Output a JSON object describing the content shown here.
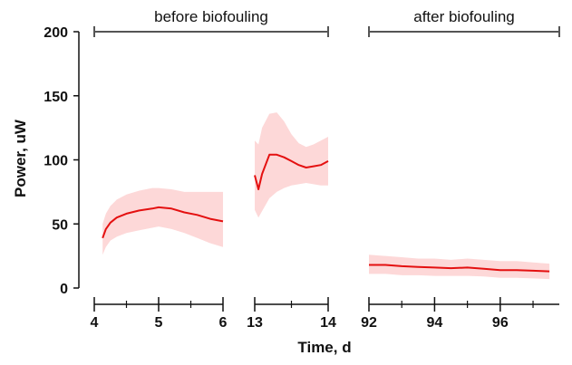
{
  "chart_data": {
    "type": "line",
    "xlabel": "Time, d",
    "ylabel": "Power, uW",
    "ylim": [
      0,
      200
    ],
    "y_ticks": [
      0,
      50,
      100,
      150,
      200
    ],
    "colors": {
      "line": "#e41010",
      "band": "#fdd8d8",
      "axis": "#111111",
      "bracket": "#555555"
    },
    "periods": [
      {
        "label": "before biofouling",
        "x_range": [
          4,
          14
        ],
        "panels": [
          0,
          1
        ]
      },
      {
        "label": "after biofouling",
        "x_range": [
          92,
          97.8
        ],
        "panels": [
          2
        ]
      }
    ],
    "panels": [
      {
        "xlim": [
          4,
          6
        ],
        "ticks": [
          4,
          5,
          6
        ],
        "minor_ticks": [
          4.5,
          5.5
        ],
        "series": [
          {
            "x": [
              4.13,
              4.18,
              4.25,
              4.35,
              4.5,
              4.7,
              4.9,
              5.0,
              5.2,
              5.4,
              5.6,
              5.8,
              6.0
            ],
            "mean": [
              39,
              46,
              51,
              55,
              58,
              60.5,
              62,
              63,
              62,
              59,
              57,
              54,
              52
            ],
            "upper": [
              50,
              58,
              64,
              69,
              73,
              76,
              78,
              78,
              77,
              75,
              75,
              75,
              75
            ],
            "lower": [
              26,
              32,
              37,
              40,
              43,
              45,
              47,
              48,
              46,
              43,
              39,
              35,
              32
            ]
          }
        ]
      },
      {
        "xlim": [
          13,
          14
        ],
        "ticks": [
          13,
          14
        ],
        "minor_ticks": [
          13.5
        ],
        "series": [
          {
            "x": [
              13.0,
              13.05,
              13.1,
              13.2,
              13.3,
              13.4,
              13.5,
              13.6,
              13.7,
              13.8,
              13.9,
              14.0
            ],
            "mean": [
              88,
              77,
              89,
              104,
              104,
              102,
              99,
              96,
              94,
              95,
              96,
              99
            ],
            "upper": [
              115,
              112,
              125,
              136,
              137,
              130,
              120,
              113,
              110,
              112,
              115,
              118
            ],
            "lower": [
              61,
              55,
              60,
              70,
              75,
              78,
              80,
              81,
              82,
              81,
              80,
              80
            ]
          }
        ]
      },
      {
        "xlim": [
          92,
          97.8
        ],
        "ticks": [
          92,
          94,
          96
        ],
        "minor_ticks": [
          93,
          95,
          97
        ],
        "series": [
          {
            "x": [
              92.0,
              92.5,
              93.0,
              93.5,
              94.0,
              94.5,
              95.0,
              95.5,
              96.0,
              96.5,
              97.0,
              97.5
            ],
            "mean": [
              18,
              18,
              17,
              16.5,
              16,
              15.5,
              16,
              15,
              14,
              14,
              13.5,
              13
            ],
            "upper": [
              26,
              25,
              24,
              23,
              23,
              22,
              23,
              22,
              21,
              21,
              20,
              19
            ],
            "lower": [
              11,
              11,
              10,
              10,
              9.5,
              9.5,
              9.5,
              9,
              8,
              8,
              7.5,
              7
            ]
          }
        ]
      }
    ]
  }
}
